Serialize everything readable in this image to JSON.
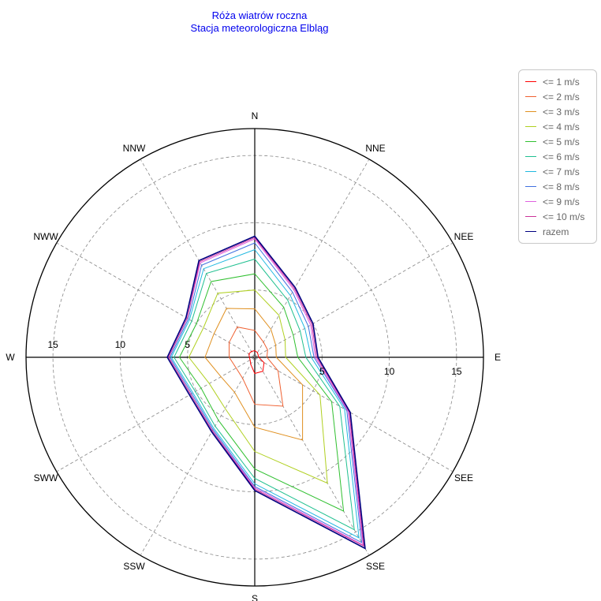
{
  "title": "Róża wiatrów roczna",
  "subtitle": "Stacja meteorologiczna Elbląg",
  "chart_data": {
    "type": "radar",
    "directions": [
      "N",
      "NNE",
      "NEE",
      "E",
      "SEE",
      "SSE",
      "S",
      "SSW",
      "SWW",
      "W",
      "NWW",
      "NNW"
    ],
    "radial_ticks": [
      5,
      10,
      15
    ],
    "rmax": 17,
    "grid": true,
    "legend_position": "top-right",
    "series": [
      {
        "name": "<= 1 m/s",
        "color": "#ff0000",
        "values": [
          0.5,
          0.4,
          0.3,
          0.3,
          0.8,
          1.2,
          1.2,
          0.6,
          0.4,
          0.4,
          0.5,
          0.5
        ]
      },
      {
        "name": "<= 2 m/s",
        "color": "#f06030",
        "values": [
          2.0,
          1.3,
          1.1,
          0.9,
          2.0,
          4.2,
          3.5,
          1.8,
          1.6,
          1.9,
          2.2,
          2.6
        ]
      },
      {
        "name": "<= 3 m/s",
        "color": "#e09020",
        "values": [
          3.6,
          2.4,
          1.8,
          1.6,
          4.1,
          7.1,
          5.2,
          3.0,
          2.9,
          3.7,
          3.5,
          4.2
        ]
      },
      {
        "name": "<= 4 m/s",
        "color": "#b0d020",
        "values": [
          5.0,
          3.6,
          2.6,
          2.3,
          5.6,
          10.8,
          7.0,
          4.4,
          3.9,
          4.9,
          4.4,
          5.5
        ]
      },
      {
        "name": "<= 5 m/s",
        "color": "#30c030",
        "values": [
          6.2,
          4.3,
          3.3,
          3.2,
          6.6,
          13.2,
          8.3,
          5.4,
          4.6,
          5.6,
          5.0,
          6.5
        ]
      },
      {
        "name": "<= 6 m/s",
        "color": "#20c090",
        "values": [
          7.3,
          4.9,
          3.9,
          3.8,
          7.3,
          14.8,
          9.0,
          5.9,
          5.1,
          6.0,
          5.4,
          7.2
        ]
      },
      {
        "name": "<= 7 m/s",
        "color": "#20b8e0",
        "values": [
          8.0,
          5.3,
          4.3,
          4.2,
          7.7,
          15.5,
          9.4,
          6.1,
          5.3,
          6.2,
          5.6,
          7.6
        ]
      },
      {
        "name": "<= 8 m/s",
        "color": "#4070e0",
        "values": [
          8.5,
          5.6,
          4.6,
          4.4,
          7.9,
          15.9,
          9.6,
          6.2,
          5.4,
          6.3,
          5.7,
          7.9
        ]
      },
      {
        "name": "<= 9 m/s",
        "color": "#e060e0",
        "values": [
          8.8,
          5.8,
          4.8,
          4.5,
          8.0,
          16.1,
          9.7,
          6.3,
          5.5,
          6.4,
          5.8,
          8.1
        ]
      },
      {
        "name": "<= 10 m/s",
        "color": "#cc3399",
        "values": [
          8.9,
          5.9,
          4.9,
          4.6,
          8.1,
          16.2,
          9.8,
          6.3,
          5.5,
          6.4,
          5.8,
          8.2
        ]
      },
      {
        "name": "razem",
        "color": "#000080",
        "values": [
          9.0,
          6.0,
          5.0,
          4.7,
          8.2,
          16.4,
          9.9,
          6.4,
          5.6,
          6.5,
          5.9,
          8.3
        ]
      }
    ]
  }
}
